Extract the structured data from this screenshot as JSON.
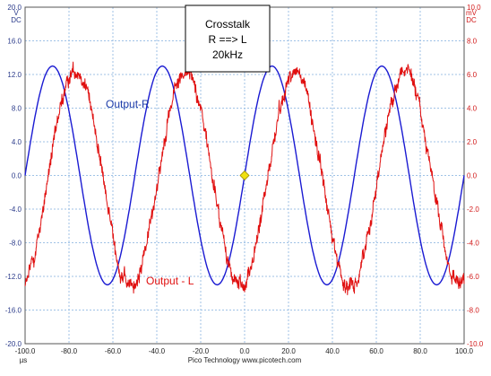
{
  "chart_data": {
    "type": "line",
    "title_box": [
      "Crosstalk",
      "R ==> L",
      "20kHz"
    ],
    "x_axis": {
      "unit": "µs",
      "range": [
        -100,
        100
      ],
      "tick_labels": [
        "-100.0",
        "-80.0",
        "-60.0",
        "-40.0",
        "-20.0",
        "0.0",
        "20.0",
        "40.0",
        "60.0",
        "80.0",
        "100.0"
      ]
    },
    "y_left": {
      "unit_lines": [
        "V",
        "DC"
      ],
      "range": [
        -20,
        20
      ],
      "tick_labels": [
        "20.0",
        "16.0",
        "12.0",
        "8.0",
        "4.0",
        "0.0",
        "-4.0",
        "-8.0",
        "-12.0",
        "-16.0",
        "-20.0"
      ]
    },
    "y_right": {
      "unit_lines": [
        "mV",
        "DC"
      ],
      "range": [
        -10,
        10
      ],
      "tick_labels": [
        "10.0",
        "8.0",
        "6.0",
        "4.0",
        "2.0",
        "0.0",
        "-2.0",
        "-4.0",
        "-6.0",
        "-8.0",
        "-10.0"
      ]
    },
    "grid": true,
    "series": [
      {
        "name": "Output-R",
        "axis": "left",
        "color": "#1a1ad2",
        "shape": "sine",
        "amplitude": 13,
        "frequency_khz": 20,
        "offset": 0,
        "zero_crossing_rising_us": 0
      },
      {
        "name": "Output - L",
        "axis": "right",
        "color": "#e01010",
        "shape": "noisy sine",
        "amplitude": 6.4,
        "frequency_khz": 20,
        "offset": -0.2,
        "peaks_us": [
          -77,
          -27,
          23,
          73
        ],
        "noise_amplitude": 0.5
      }
    ],
    "trigger_marker": {
      "x": 0,
      "y": 0,
      "color": "#f0e010"
    },
    "annotations": [
      {
        "text": "Output-R",
        "color": "#1a3aa8",
        "near": "upper left, beside the blue trace"
      },
      {
        "text": "Output - L",
        "color": "#e01010",
        "near": "lower left, beside the red trace"
      }
    ]
  },
  "footer": {
    "text": "Pico Technology  www.picotech.com"
  }
}
